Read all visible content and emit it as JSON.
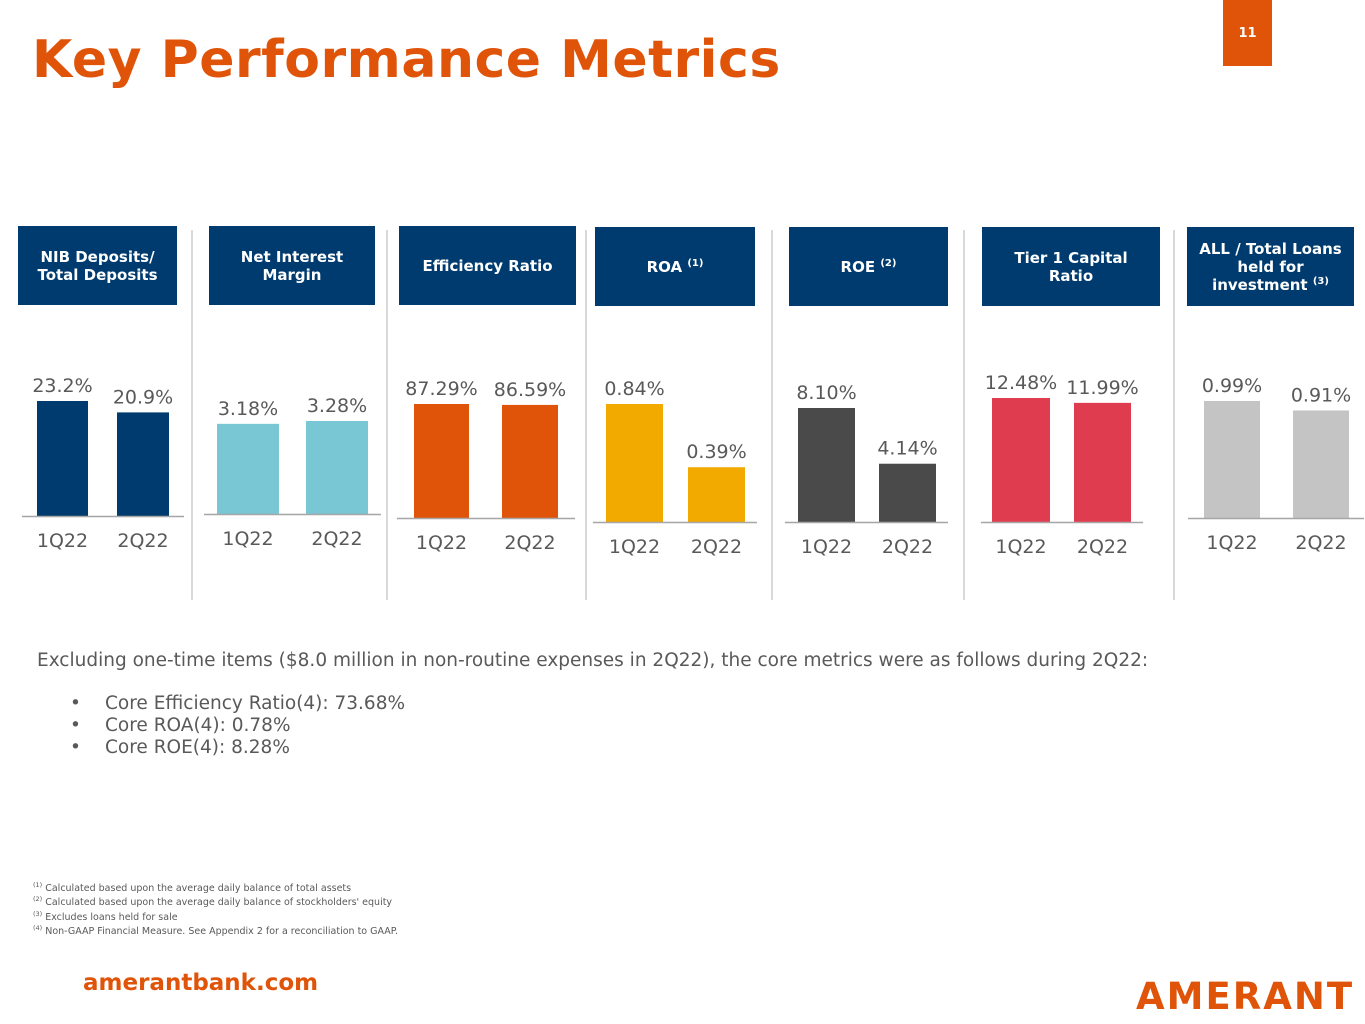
{
  "title": "Key Performance Metrics",
  "page_number": "11",
  "brand_colors": {
    "orange": "#E0540A",
    "navy": "#003B6F"
  },
  "panels": [
    {
      "header": "NIB Deposits/ Total Deposits",
      "footnote_ref": ""
    },
    {
      "header": "Net Interest Margin",
      "footnote_ref": ""
    },
    {
      "header": "Efficiency Ratio",
      "footnote_ref": ""
    },
    {
      "header": "ROA",
      "footnote_ref": "(1)"
    },
    {
      "header": "ROE",
      "footnote_ref": "(2)"
    },
    {
      "header": "Tier 1 Capital Ratio",
      "footnote_ref": ""
    },
    {
      "header": "ALL / Total Loans held for investment",
      "footnote_ref": "(3)"
    }
  ],
  "chart_data": [
    {
      "type": "bar",
      "title": "NIB Deposits/ Total Deposits",
      "categories": [
        "1Q22",
        "2Q22"
      ],
      "values": [
        23.2,
        20.9
      ],
      "labels": [
        "23.2%",
        "20.9%"
      ],
      "color": "#003B6F"
    },
    {
      "type": "bar",
      "title": "Net Interest Margin",
      "categories": [
        "1Q22",
        "2Q22"
      ],
      "values": [
        3.18,
        3.28
      ],
      "labels": [
        "3.18%",
        "3.28%"
      ],
      "color": "#79C6D4"
    },
    {
      "type": "bar",
      "title": "Efficiency Ratio",
      "categories": [
        "1Q22",
        "2Q22"
      ],
      "values": [
        87.29,
        86.59
      ],
      "labels": [
        "87.29%",
        "86.59%"
      ],
      "color": "#E0540A"
    },
    {
      "type": "bar",
      "title": "ROA (1)",
      "categories": [
        "1Q22",
        "2Q22"
      ],
      "values": [
        0.84,
        0.39
      ],
      "labels": [
        "0.84%",
        "0.39%"
      ],
      "color": "#F2A900"
    },
    {
      "type": "bar",
      "title": "ROE (2)",
      "categories": [
        "1Q22",
        "2Q22"
      ],
      "values": [
        8.1,
        4.14
      ],
      "labels": [
        "8.10%",
        "4.14%"
      ],
      "color": "#4A4A4A"
    },
    {
      "type": "bar",
      "title": "Tier 1 Capital Ratio",
      "categories": [
        "1Q22",
        "2Q22"
      ],
      "values": [
        12.48,
        11.99
      ],
      "labels": [
        "12.48%",
        "11.99%"
      ],
      "color": "#E03C50"
    },
    {
      "type": "bar",
      "title": "ALL / Total Loans held for investment (3)",
      "categories": [
        "1Q22",
        "2Q22"
      ],
      "values": [
        0.99,
        0.91
      ],
      "labels": [
        "0.99%",
        "0.91%"
      ],
      "color": "#C4C4C4"
    }
  ],
  "note": "Excluding one-time items ($8.0 million in non-routine expenses in 2Q22), the core metrics were as follows during 2Q22:",
  "bullets": [
    "Core Efficiency Ratio(4): 73.68%",
    "Core ROA(4): 0.78%",
    "Core ROE(4): 8.28%"
  ],
  "footnotes": [
    {
      "ref": "(1)",
      "text": "Calculated based upon the average daily balance of total assets"
    },
    {
      "ref": "(2)",
      "text": "Calculated based upon the average daily balance of stockholders' equity"
    },
    {
      "ref": "(3)",
      "text": "Excludes loans held for sale"
    },
    {
      "ref": "(4)",
      "text": "Non-GAAP Financial Measure. See Appendix 2 for a reconciliation to GAAP."
    }
  ],
  "website": "amerantbank.com",
  "logo_text": "AMERANT"
}
